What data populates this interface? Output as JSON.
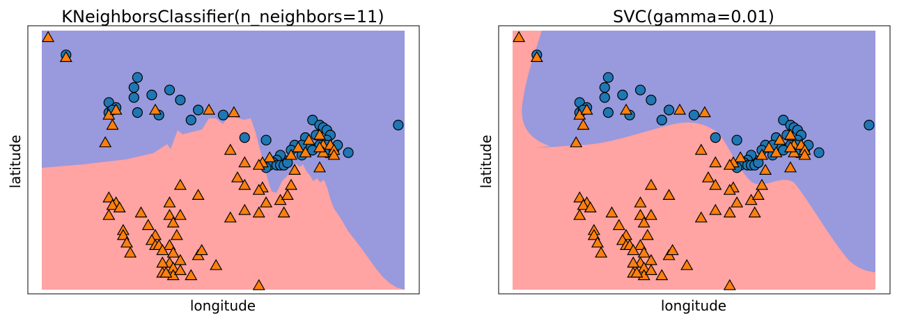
{
  "colors": {
    "class0_region": "#9999dd",
    "class1_region": "#ffa3a3",
    "class0_marker": "#1f77b4",
    "class1_marker": "#ff7f0e",
    "marker_edge": "#000000",
    "frame": "#000000"
  },
  "chart_data": [
    {
      "type": "scatter",
      "title": "KNeighborsClassifier(n_neighbors=11)",
      "xlabel": "longitude",
      "ylabel": "latitude",
      "ticks_visible": false,
      "background": "decision regions (class 0 blue, class 1 red)",
      "series": [
        {
          "marker": "circle",
          "points": [
            [
              0.06,
              0.92
            ],
            [
              0.26,
              0.83
            ],
            [
              0.25,
              0.79
            ],
            [
              0.25,
              0.75
            ],
            [
              0.3,
              0.76
            ],
            [
              0.35,
              0.78
            ],
            [
              0.38,
              0.74
            ],
            [
              0.18,
              0.73
            ],
            [
              0.2,
              0.71
            ],
            [
              0.18,
              0.69
            ],
            [
              0.19,
              0.7
            ],
            [
              0.26,
              0.69
            ],
            [
              0.32,
              0.68
            ],
            [
              0.43,
              0.7
            ],
            [
              0.5,
              0.68
            ],
            [
              0.41,
              0.66
            ],
            [
              0.56,
              0.59
            ],
            [
              0.62,
              0.58
            ],
            [
              0.75,
              0.66
            ],
            [
              0.76,
              0.6
            ],
            [
              0.73,
              0.59
            ],
            [
              0.74,
              0.56
            ],
            [
              0.71,
              0.55
            ],
            [
              0.72,
              0.52
            ],
            [
              0.7,
              0.56
            ],
            [
              0.69,
              0.54
            ],
            [
              0.67,
              0.5
            ],
            [
              0.66,
              0.52
            ],
            [
              0.65,
              0.5
            ],
            [
              0.64,
              0.49
            ],
            [
              0.63,
              0.48
            ],
            [
              0.62,
              0.47
            ],
            [
              0.65,
              0.48
            ],
            [
              0.66,
              0.48
            ],
            [
              0.67,
              0.48
            ],
            [
              0.68,
              0.49
            ],
            [
              0.72,
              0.56
            ],
            [
              0.77,
              0.64
            ],
            [
              0.78,
              0.63
            ],
            [
              0.79,
              0.62
            ],
            [
              0.8,
              0.6
            ],
            [
              0.79,
              0.58
            ],
            [
              0.8,
              0.55
            ],
            [
              0.77,
              0.56
            ],
            [
              0.75,
              0.54
            ],
            [
              0.79,
              0.56
            ],
            [
              0.79,
              0.53
            ],
            [
              0.81,
              0.54
            ],
            [
              0.82,
              0.56
            ],
            [
              0.85,
              0.53
            ],
            [
              0.99,
              0.64
            ]
          ]
        },
        {
          "marker": "triangle",
          "points": [
            [
              0.01,
              0.99
            ],
            [
              0.06,
              0.91
            ],
            [
              0.18,
              0.68
            ],
            [
              0.19,
              0.64
            ],
            [
              0.17,
              0.57
            ],
            [
              0.2,
              0.7
            ],
            [
              0.31,
              0.7
            ],
            [
              0.46,
              0.7
            ],
            [
              0.53,
              0.69
            ],
            [
              0.52,
              0.54
            ],
            [
              0.56,
              0.49
            ],
            [
              0.63,
              0.51
            ],
            [
              0.61,
              0.49
            ],
            [
              0.6,
              0.48
            ],
            [
              0.69,
              0.52
            ],
            [
              0.71,
              0.55
            ],
            [
              0.73,
              0.53
            ],
            [
              0.7,
              0.46
            ],
            [
              0.74,
              0.58
            ],
            [
              0.77,
              0.6
            ],
            [
              0.78,
              0.56
            ],
            [
              0.8,
              0.56
            ],
            [
              0.81,
              0.54
            ],
            [
              0.78,
              0.53
            ],
            [
              0.77,
              0.55
            ],
            [
              0.81,
              0.52
            ],
            [
              0.54,
              0.43
            ],
            [
              0.56,
              0.4
            ],
            [
              0.61,
              0.39
            ],
            [
              0.69,
              0.4
            ],
            [
              0.77,
              0.47
            ],
            [
              0.66,
              0.34
            ],
            [
              0.62,
              0.33
            ],
            [
              0.68,
              0.36
            ],
            [
              0.6,
              0.38
            ],
            [
              0.43,
              0.36
            ],
            [
              0.38,
              0.4
            ],
            [
              0.35,
              0.33
            ],
            [
              0.18,
              0.35
            ],
            [
              0.2,
              0.33
            ],
            [
              0.19,
              0.32
            ],
            [
              0.21,
              0.31
            ],
            [
              0.27,
              0.29
            ],
            [
              0.35,
              0.28
            ],
            [
              0.38,
              0.28
            ],
            [
              0.6,
              0.29
            ],
            [
              0.56,
              0.3
            ],
            [
              0.52,
              0.27
            ],
            [
              0.67,
              0.29
            ],
            [
              0.36,
              0.25
            ],
            [
              0.37,
              0.2
            ],
            [
              0.29,
              0.24
            ],
            [
              0.31,
              0.2
            ],
            [
              0.22,
              0.22
            ],
            [
              0.22,
              0.2
            ],
            [
              0.23,
              0.17
            ],
            [
              0.3,
              0.18
            ],
            [
              0.31,
              0.16
            ],
            [
              0.32,
              0.16
            ],
            [
              0.35,
              0.16
            ],
            [
              0.18,
              0.28
            ],
            [
              0.24,
              0.13
            ],
            [
              0.33,
              0.14
            ],
            [
              0.36,
              0.13
            ],
            [
              0.38,
              0.1
            ],
            [
              0.43,
              0.12
            ],
            [
              0.44,
              0.14
            ],
            [
              0.48,
              0.08
            ],
            [
              0.35,
              0.09
            ],
            [
              0.33,
              0.09
            ],
            [
              0.36,
              0.07
            ],
            [
              0.36,
              0.04
            ],
            [
              0.33,
              0.05
            ],
            [
              0.34,
              0.05
            ],
            [
              0.38,
              0.06
            ],
            [
              0.41,
              0.04
            ],
            [
              0.6,
              0.0
            ]
          ]
        }
      ]
    },
    {
      "type": "scatter",
      "title": "SVC(gamma=0.01)",
      "xlabel": "longitude",
      "ylabel": "latitude",
      "ticks_visible": false,
      "background": "decision regions (class 0 blue, class 1 red)"
    }
  ]
}
